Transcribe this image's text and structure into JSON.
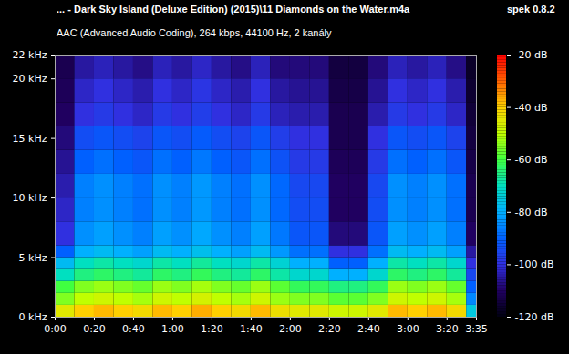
{
  "chart_data": {
    "type": "heatmap",
    "title": "... - Dark Sky Island (Deluxe Edition) (2015)\\11 Diamonds on the Water.m4a",
    "subtitle": "AAC (Advanced Audio Coding), 264 kbps, 44100 Hz, 2 kanály",
    "annotations": [
      "spek 0.8.2"
    ],
    "x_edges": [
      0,
      10,
      20,
      30,
      40,
      50,
      60,
      70,
      80,
      90,
      100,
      110,
      120,
      130,
      140,
      150,
      160,
      170,
      180,
      190,
      200,
      210,
      215
    ],
    "y_edges": [
      0,
      1,
      2,
      3,
      4,
      5,
      6,
      8,
      10,
      12,
      14,
      16,
      18,
      20,
      22
    ],
    "values": [
      [
        -45,
        -40,
        -38,
        -40,
        -42,
        -38,
        -40,
        -37,
        -40,
        -42,
        -38,
        -43,
        -45,
        -45,
        -48,
        -48,
        -45,
        -38,
        -40,
        -38,
        -42,
        -75
      ],
      [
        -55,
        -50,
        -48,
        -50,
        -52,
        -48,
        -50,
        -47,
        -50,
        -52,
        -48,
        -53,
        -55,
        -55,
        -58,
        -58,
        -55,
        -48,
        -50,
        -48,
        -52,
        -85
      ],
      [
        -60,
        -55,
        -53,
        -55,
        -57,
        -53,
        -55,
        -52,
        -55,
        -57,
        -53,
        -58,
        -62,
        -62,
        -65,
        -65,
        -62,
        -53,
        -55,
        -53,
        -57,
        -90
      ],
      [
        -70,
        -65,
        -63,
        -65,
        -67,
        -63,
        -65,
        -62,
        -65,
        -67,
        -63,
        -68,
        -72,
        -72,
        -80,
        -80,
        -72,
        -63,
        -65,
        -63,
        -67,
        -95
      ],
      [
        -78,
        -70,
        -68,
        -70,
        -72,
        -68,
        -70,
        -67,
        -70,
        -72,
        -68,
        -73,
        -80,
        -80,
        -90,
        -90,
        -80,
        -68,
        -70,
        -68,
        -72,
        -100
      ],
      [
        -90,
        -80,
        -78,
        -80,
        -82,
        -78,
        -80,
        -77,
        -80,
        -82,
        -78,
        -83,
        -88,
        -88,
        -100,
        -100,
        -88,
        -78,
        -80,
        -78,
        -82,
        -105
      ],
      [
        -100,
        -84,
        -82,
        -84,
        -86,
        -82,
        -84,
        -81,
        -84,
        -86,
        -82,
        -87,
        -92,
        -92,
        -108,
        -108,
        -92,
        -82,
        -84,
        -82,
        -86,
        -110
      ],
      [
        -102,
        -86,
        -84,
        -86,
        -88,
        -84,
        -86,
        -83,
        -86,
        -88,
        -84,
        -89,
        -94,
        -94,
        -110,
        -110,
        -94,
        -84,
        -86,
        -84,
        -88,
        -112
      ],
      [
        -104,
        -86,
        -84,
        -86,
        -88,
        -84,
        -86,
        -83,
        -86,
        -88,
        -84,
        -89,
        -95,
        -95,
        -110,
        -110,
        -95,
        -84,
        -86,
        -84,
        -88,
        -112
      ],
      [
        -106,
        -90,
        -88,
        -90,
        -92,
        -88,
        -90,
        -87,
        -90,
        -92,
        -88,
        -93,
        -98,
        -98,
        -111,
        -111,
        -98,
        -88,
        -90,
        -88,
        -92,
        -113
      ],
      [
        -108,
        -94,
        -92,
        -94,
        -96,
        -92,
        -94,
        -91,
        -94,
        -96,
        -92,
        -97,
        -100,
        -100,
        -112,
        -112,
        -100,
        -92,
        -94,
        -92,
        -96,
        -114
      ],
      [
        -110,
        -100,
        -98,
        -100,
        -102,
        -98,
        -100,
        -97,
        -100,
        -102,
        -98,
        -103,
        -104,
        -104,
        -112,
        -112,
        -104,
        -98,
        -100,
        -98,
        -102,
        -115
      ],
      [
        -111,
        -102,
        -100,
        -102,
        -104,
        -100,
        -102,
        -99,
        -102,
        -104,
        -100,
        -105,
        -106,
        -106,
        -113,
        -113,
        -106,
        -100,
        -102,
        -100,
        -104,
        -116
      ],
      [
        -112,
        -105,
        -103,
        -105,
        -107,
        -103,
        -105,
        -102,
        -105,
        -107,
        -103,
        -108,
        -108,
        -108,
        -114,
        -114,
        -108,
        -103,
        -105,
        -103,
        -107,
        -117
      ]
    ],
    "xlim": [
      0,
      215
    ],
    "xticks": [
      {
        "value": 0,
        "label": "0:00"
      },
      {
        "value": 20,
        "label": "0:20"
      },
      {
        "value": 40,
        "label": "0:40"
      },
      {
        "value": 60,
        "label": "1:00"
      },
      {
        "value": 80,
        "label": "1:20"
      },
      {
        "value": 100,
        "label": "1:40"
      },
      {
        "value": 120,
        "label": "2:00"
      },
      {
        "value": 140,
        "label": "2:20"
      },
      {
        "value": 160,
        "label": "2:40"
      },
      {
        "value": 180,
        "label": "3:00"
      },
      {
        "value": 200,
        "label": "3:20"
      },
      {
        "value": 215,
        "label": "3:35"
      }
    ],
    "ylim": [
      0,
      22
    ],
    "yticks": [
      {
        "value": 0,
        "label": "0 kHz"
      },
      {
        "value": 5,
        "label": "5 kHz"
      },
      {
        "value": 10,
        "label": "10 kHz"
      },
      {
        "value": 15,
        "label": "15 kHz"
      },
      {
        "value": 20,
        "label": "20 kHz"
      },
      {
        "value": 22,
        "label": "22 kHz"
      }
    ],
    "colorbar": {
      "range": [
        -120,
        -20
      ],
      "ticks": [
        {
          "value": -20,
          "label": "-20 dB"
        },
        {
          "value": -40,
          "label": "-40 dB"
        },
        {
          "value": -60,
          "label": "-60 dB"
        },
        {
          "value": -80,
          "label": "-80 dB"
        },
        {
          "value": -100,
          "label": "-100 dB"
        },
        {
          "value": -120,
          "label": "-120 dB"
        }
      ]
    }
  }
}
